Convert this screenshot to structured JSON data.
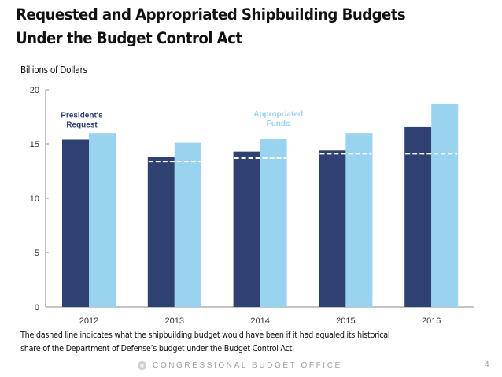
{
  "slide": {
    "title_line1": "Requested and Appropriated Shipbuilding Budgets",
    "title_line2": "Under the Budget Control Act",
    "unit_label": "Billions of Dollars",
    "note_line1": "The dashed line indicates what the shipbuilding budget would have been if it had equaled its historical",
    "note_line2": "share of the Department of Defense’s budget under the Budget Control Act.",
    "footer": "CONGRESSIONAL BUDGET OFFICE",
    "page_number": "4"
  },
  "colors": {
    "request": "#2e4172",
    "appropriated": "#98d3f0",
    "dashed": "#ffffff",
    "axis": "#8a8a8a",
    "tick_text": "#333333"
  },
  "chart_data": {
    "type": "bar",
    "title": "Requested and Appropriated Shipbuilding Budgets Under the Budget Control Act",
    "xlabel": "",
    "ylabel": "Billions of Dollars",
    "categories": [
      "2012",
      "2013",
      "2014",
      "2015",
      "2016"
    ],
    "ylim": [
      0,
      20
    ],
    "yticks": [
      0,
      5,
      10,
      15,
      20
    ],
    "grid": false,
    "series": [
      {
        "name": "President's Request",
        "label_lines": [
          "President's",
          "Request"
        ],
        "values": [
          15.4,
          13.8,
          14.3,
          14.4,
          16.6
        ]
      },
      {
        "name": "Appropriated Funds",
        "label_lines": [
          "Appropriated",
          "Funds"
        ],
        "values": [
          16.0,
          15.1,
          15.5,
          16.0,
          18.7
        ]
      }
    ],
    "reference_line": {
      "name": "Historical share of DoD budget under the Budget Control Act",
      "style": "dashed",
      "values": [
        null,
        13.4,
        13.7,
        14.1,
        14.1
      ]
    },
    "annotations": [
      {
        "text": "President's Request",
        "series": 0,
        "category": "2012"
      },
      {
        "text": "Appropriated Funds",
        "series": 1,
        "category": "2014"
      }
    ]
  }
}
